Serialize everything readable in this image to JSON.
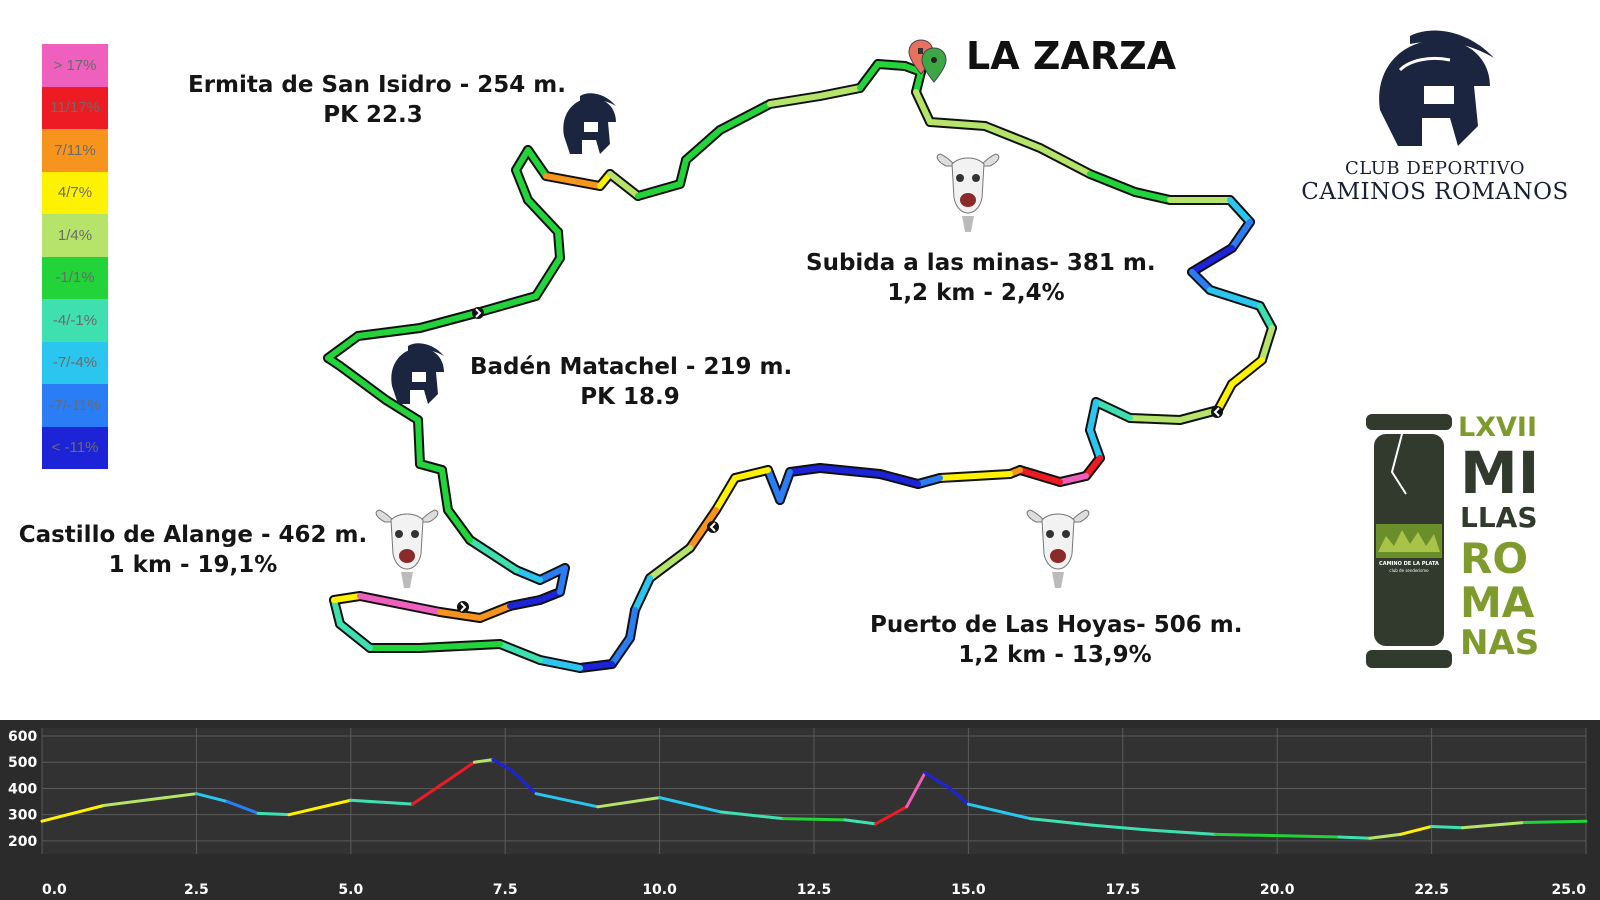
{
  "legend": [
    {
      "label": "> 17%",
      "color": "#ef5fbd"
    },
    {
      "label": "11/17%",
      "color": "#ed1c24"
    },
    {
      "label": "7/11%",
      "color": "#f7941d"
    },
    {
      "label": "4/7%",
      "color": "#fff200"
    },
    {
      "label": "1/4%",
      "color": "#b6e36a"
    },
    {
      "label": "-1/1%",
      "color": "#22d33a"
    },
    {
      "label": "-4/-1%",
      "color": "#3fe0b0"
    },
    {
      "label": "-7/-4%",
      "color": "#2bc6ef"
    },
    {
      "label": "-7/-11%",
      "color": "#2a7df5"
    },
    {
      "label": "< -11%",
      "color": "#1d23d6"
    }
  ],
  "start_label": "LA ZARZA",
  "labels": {
    "ermita": {
      "line1": "Ermita de San Isidro - 254 m.",
      "line2": "PK 22.3"
    },
    "baden": {
      "line1": "Badén Matachel - 219 m.",
      "line2": "PK 18.9"
    },
    "castillo": {
      "line1": "Castillo de Alange - 462 m.",
      "line2": "1 km - 19,1%"
    },
    "minas": {
      "line1": "Subida a las minas- 381 m.",
      "line2": "1,2 km - 2,4%"
    },
    "hoyas": {
      "line1": "Puerto de Las Hoyas- 506 m.",
      "line2": "1,2 km - 13,9%"
    }
  },
  "club": {
    "line1": "CLUB DEPORTIVO",
    "line2": "CAMINOS ROMANOS"
  },
  "millas": {
    "numeral": "LXVII",
    "words": [
      "MI",
      "LLAS",
      "RO",
      "MA",
      "NAS"
    ],
    "badge_text": "CAMINO DE LA PLATA",
    "badge_sub": "club de senderismo",
    "dark": "#323a2e",
    "green": "#7f9a2d"
  },
  "chart_data": {
    "type": "area",
    "title": "",
    "xlabel": "",
    "ylabel": "",
    "xlim": [
      0,
      25
    ],
    "ylim": [
      150,
      600
    ],
    "x_ticks": [
      "0.0",
      "2.5",
      "5.0",
      "7.5",
      "10.0",
      "12.5",
      "15.0",
      "17.5",
      "20.0",
      "22.5",
      "25.0"
    ],
    "y_ticks": [
      "600",
      "500",
      "400",
      "300",
      "200"
    ],
    "grid": true,
    "x": [
      0,
      1,
      2,
      2.5,
      3,
      3.5,
      4,
      5,
      6,
      6.5,
      7,
      7.3,
      7.6,
      8,
      9,
      10,
      11,
      12,
      13,
      13.5,
      14,
      14.3,
      14.7,
      15,
      16,
      17,
      18,
      19,
      20,
      21,
      21.5,
      22,
      22.5,
      23,
      24,
      25
    ],
    "y": [
      275,
      335,
      365,
      380,
      350,
      305,
      300,
      355,
      340,
      420,
      500,
      510,
      470,
      380,
      330,
      365,
      310,
      285,
      280,
      265,
      330,
      460,
      400,
      340,
      285,
      260,
      240,
      225,
      220,
      215,
      210,
      225,
      255,
      250,
      270,
      275
    ]
  }
}
